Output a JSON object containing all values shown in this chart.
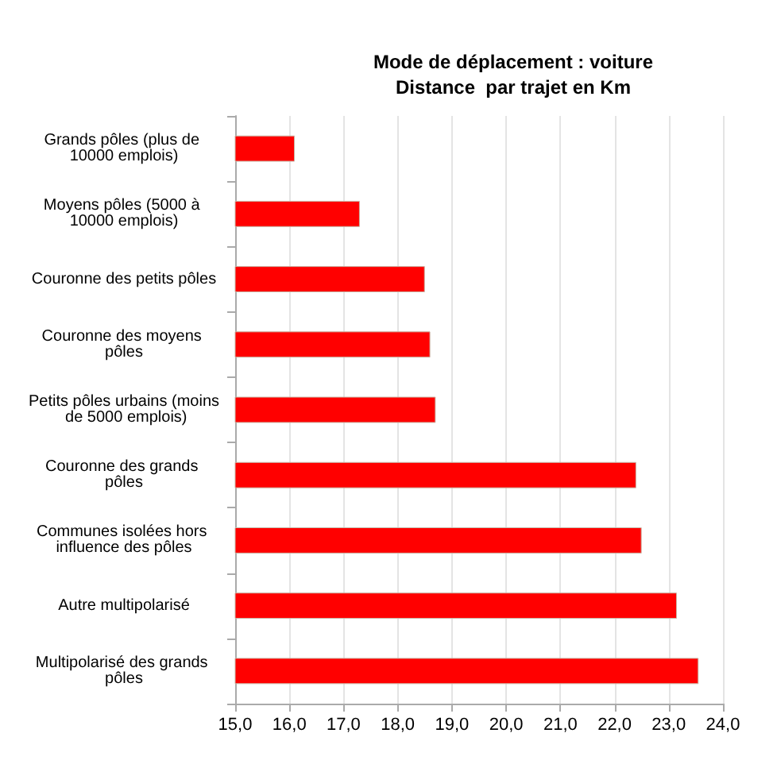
{
  "chart_data": {
    "type": "bar",
    "orientation": "horizontal",
    "title": "Mode de déplacement : voiture\nDistance  par trajet en Km",
    "categories": [
      "Grands pôles (plus de 10000 emplois)",
      "Moyens pôles (5000 à 10000 emplois)",
      "Couronne des petits pôles",
      "Couronne des moyens pôles",
      "Petits pôles urbains (moins de 5000 emplois)",
      "Couronne des grands pôles",
      "Communes isolées hors influence des pôles",
      "Autre multipolarisé",
      "Multipolarisé des grands pôles"
    ],
    "values": [
      16.1,
      17.3,
      18.5,
      18.6,
      18.7,
      22.4,
      22.5,
      23.15,
      23.55
    ],
    "color": "#ff0000",
    "xlim": [
      15,
      24
    ],
    "xticks": [
      {
        "value": 15,
        "label": "15,0"
      },
      {
        "value": 16,
        "label": "16,0"
      },
      {
        "value": 17,
        "label": "17,0"
      },
      {
        "value": 18,
        "label": "18,0"
      },
      {
        "value": 19,
        "label": "19,0"
      },
      {
        "value": 20,
        "label": "20,0"
      },
      {
        "value": 21,
        "label": "21,0"
      },
      {
        "value": 22,
        "label": "22,0"
      },
      {
        "value": 23,
        "label": "23,0"
      },
      {
        "value": 24,
        "label": "24,0"
      }
    ],
    "grid": "x"
  }
}
